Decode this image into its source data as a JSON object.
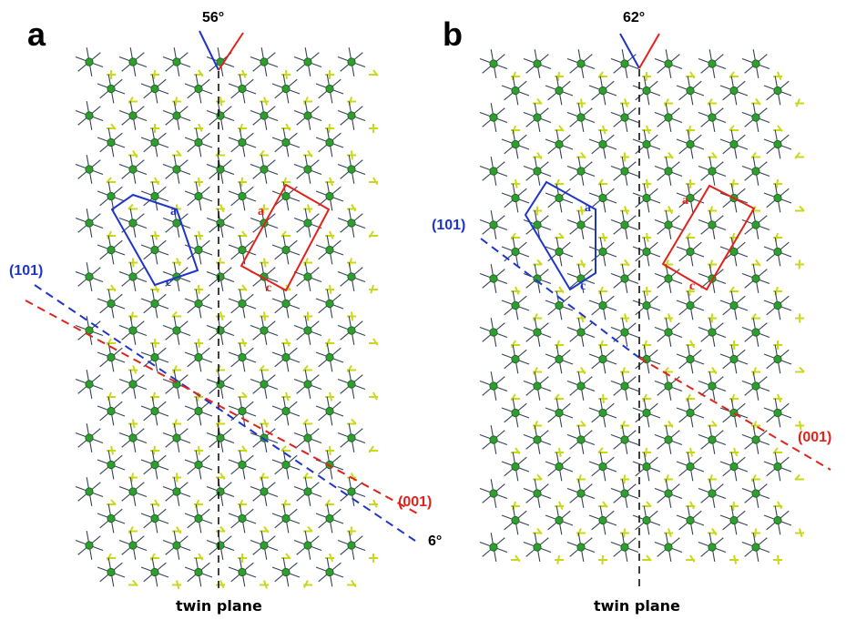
{
  "panels": [
    {
      "letter": "a",
      "angle_top": "56°",
      "angle_bottom": "6°",
      "planes": [
        {
          "label": "(101)",
          "color": "#1f35c8"
        },
        {
          "label": "(001)",
          "color": "#e0231b"
        }
      ],
      "cell_labels": {
        "a": "a",
        "c": "c"
      },
      "caption": "twin plane"
    },
    {
      "letter": "b",
      "angle_top": "62°",
      "planes": [
        {
          "label": "(101)",
          "color": "#1f35c8"
        },
        {
          "label": "(001)",
          "color": "#e0231b"
        }
      ],
      "cell_labels": {
        "a": "a",
        "c": "c"
      },
      "caption": "twin plane"
    }
  ],
  "colors": {
    "blue": "#1f35c8",
    "red": "#e0231b",
    "atom_green": "#2e9e2e",
    "bond_yellow": "#c9d81f",
    "bond_dark": "#334155"
  }
}
